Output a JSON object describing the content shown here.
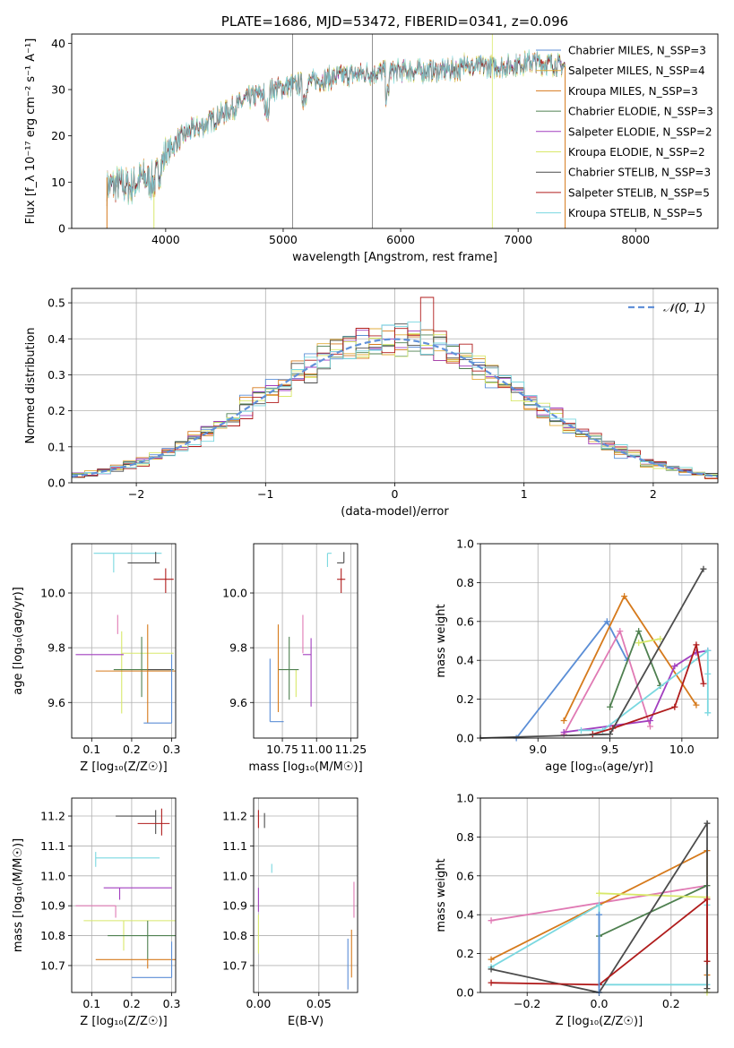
{
  "chart_data": [
    {
      "id": "spectrum",
      "type": "line",
      "title": "PLATE=1686, MJD=53472, FIBERID=0341, z=0.096",
      "xlabel": "wavelength [Angstrom, rest frame]",
      "ylabel": "Flux [f_λ 10⁻¹⁷ erg cm⁻² s⁻¹ A⁻¹]",
      "xlim": [
        3200,
        8700
      ],
      "ylim": [
        0,
        42
      ],
      "xticks": [
        4000,
        5000,
        6000,
        7000,
        8000
      ],
      "yticks": [
        0,
        10,
        20,
        30,
        40
      ],
      "grid": false,
      "legend_position": "top-right",
      "series": [
        {
          "name": "Chabrier MILES, N_SSP=3",
          "color": "#5b8ed6"
        },
        {
          "name": "Salpeter MILES, N_SSP=4",
          "color": "#e0ac3c"
        },
        {
          "name": "Kroupa MILES, N_SSP=3",
          "color": "#d67a1c"
        },
        {
          "name": "Chabrier ELODIE, N_SSP=3",
          "color": "#4f8050"
        },
        {
          "name": "Salpeter ELODIE, N_SSP=2",
          "color": "#a23fbf"
        },
        {
          "name": "Kroupa ELODIE, N_SSP=2",
          "color": "#d8e86a"
        },
        {
          "name": "Chabrier STELIB, N_SSP=3",
          "color": "#4c4c4c"
        },
        {
          "name": "Salpeter STELIB, N_SSP=5",
          "color": "#b01c1c"
        },
        {
          "name": "Kroupa STELIB, N_SSP=5",
          "color": "#7ad8e0"
        }
      ],
      "continuum": {
        "x": [
          3500,
          3600,
          3700,
          3800,
          3900,
          4000,
          4100,
          4200,
          4300,
          4500,
          4700,
          4900,
          5100,
          5300,
          5500,
          5700,
          5900,
          6100,
          6300,
          6500,
          6700,
          6900,
          7100,
          7300,
          7400
        ],
        "y": [
          9,
          9.5,
          9,
          11,
          10,
          16,
          19,
          21,
          22,
          25,
          28,
          30,
          31,
          32,
          33,
          33.5,
          34,
          34,
          34,
          34.5,
          35,
          35,
          36,
          35.5,
          35
        ]
      },
      "edge_drops": [
        3500,
        7400
      ],
      "spikes": [
        5080,
        5760,
        6780
      ]
    },
    {
      "id": "residuals",
      "type": "line",
      "xlabel": "(data-model)/error",
      "ylabel": "Normed distribution",
      "xlim": [
        -2.5,
        2.5
      ],
      "ylim": [
        0,
        0.54
      ],
      "xticks": [
        -2,
        -1,
        0,
        1,
        2
      ],
      "yticks": [
        0,
        0.1,
        0.2,
        0.3,
        0.4,
        0.5
      ],
      "grid": true,
      "legend_position": "top-right",
      "reference": {
        "name": "𝒩(0, 1)",
        "mean": 0,
        "sigma": 1,
        "color": "#6190d8"
      }
    },
    {
      "id": "age-vs-Z",
      "type": "scatter",
      "xlabel": "Z [log₁₀(Z/Z☉)]",
      "ylabel": "age  [log₁₀(age/yr)]",
      "xlim": [
        0.05,
        0.31
      ],
      "ylim": [
        9.47,
        10.18
      ],
      "xticks": [
        0.1,
        0.2,
        0.3
      ],
      "yticks": [
        9.6,
        9.8,
        10.0
      ],
      "grid": true,
      "points": [
        {
          "color": "#7ad8e0",
          "x": 0.155,
          "y": 10.145,
          "xerr": [
            0.05,
            0.12
          ],
          "yerr": [
            0.07,
            0.0
          ]
        },
        {
          "color": "#4c4c4c",
          "x": 0.26,
          "y": 10.11,
          "xerr": [
            0.07,
            0.01
          ],
          "yerr": [
            0.0,
            0.04
          ]
        },
        {
          "color": "#b01c1c",
          "x": 0.285,
          "y": 10.05,
          "xerr": [
            0.03,
            0.02
          ],
          "yerr": [
            0.05,
            0.04
          ]
        },
        {
          "color": "#e07ab4",
          "x": 0.165,
          "y": 9.85,
          "xerr": [
            0.0,
            0.0
          ],
          "yerr": [
            0.0,
            0.07
          ]
        },
        {
          "color": "#d8e86a",
          "x": 0.175,
          "y": 9.78,
          "xerr": [
            0.0,
            0.13
          ],
          "yerr": [
            0.22,
            0.08
          ]
        },
        {
          "color": "#a23fbf",
          "x": 0.16,
          "y": 9.775,
          "xerr": [
            0.1,
            0.02
          ],
          "yerr": [
            0.0,
            0.0
          ]
        },
        {
          "color": "#4f8050",
          "x": 0.225,
          "y": 9.72,
          "xerr": [
            0.07,
            0.08
          ],
          "yerr": [
            0.1,
            0.12
          ]
        },
        {
          "color": "#d67a1c",
          "x": 0.24,
          "y": 9.715,
          "xerr": [
            0.13,
            0.07
          ],
          "yerr": [
            0.19,
            0.17
          ]
        },
        {
          "color": "#4c4c4c",
          "x": 0.3,
          "y": 9.72,
          "xerr": [
            0.06,
            0.0
          ],
          "yerr": [
            0.0,
            0.0
          ]
        },
        {
          "color": "#5b8ed6",
          "x": 0.3,
          "y": 9.525,
          "xerr": [
            0.07,
            0.0
          ],
          "yerr": [
            0.0,
            0.25
          ]
        }
      ]
    },
    {
      "id": "age-vs-mass",
      "type": "scatter",
      "xlabel": "mass [log₁₀(M/M☉)]",
      "ylabel": "",
      "xlim": [
        10.54,
        11.3
      ],
      "ylim": [
        9.47,
        10.18
      ],
      "xticks": [
        10.75,
        11.0,
        11.25
      ],
      "yticks": [
        9.6,
        9.8,
        10.0
      ],
      "grid": true,
      "points": [
        {
          "color": "#7ad8e0",
          "x": 11.08,
          "y": 10.145,
          "xerr": [
            0.0,
            0.03
          ],
          "yerr": [
            0.05,
            0.0
          ]
        },
        {
          "color": "#4c4c4c",
          "x": 11.2,
          "y": 10.11,
          "xerr": [
            0.05,
            0.0
          ],
          "yerr": [
            0.0,
            0.04
          ]
        },
        {
          "color": "#b01c1c",
          "x": 11.18,
          "y": 10.05,
          "xerr": [
            0.03,
            0.03
          ],
          "yerr": [
            0.05,
            0.04
          ]
        },
        {
          "color": "#e07ab4",
          "x": 10.9,
          "y": 9.78,
          "xerr": [
            0.0,
            0.0
          ],
          "yerr": [
            0.0,
            0.14
          ]
        },
        {
          "color": "#a23fbf",
          "x": 10.96,
          "y": 9.775,
          "xerr": [
            0.06,
            0.0
          ],
          "yerr": [
            0.19,
            0.06
          ]
        },
        {
          "color": "#d8e86a",
          "x": 10.85,
          "y": 9.72,
          "xerr": [
            0.0,
            0.0
          ],
          "yerr": [
            0.1,
            0.0
          ]
        },
        {
          "color": "#4f8050",
          "x": 10.8,
          "y": 9.72,
          "xerr": [
            0.08,
            0.07
          ],
          "yerr": [
            0.11,
            0.12
          ]
        },
        {
          "color": "#d67a1c",
          "x": 10.72,
          "y": 9.715,
          "xerr": [
            0.0,
            0.0
          ],
          "yerr": [
            0.15,
            0.17
          ]
        },
        {
          "color": "#5b8ed6",
          "x": 10.66,
          "y": 9.53,
          "xerr": [
            0.0,
            0.1
          ],
          "yerr": [
            0.0,
            0.23
          ]
        }
      ]
    },
    {
      "id": "weight-vs-age",
      "type": "line",
      "xlabel": "age  [log₁₀(age/yr)]",
      "ylabel": "mass weight",
      "xlim": [
        8.6,
        10.25
      ],
      "ylim": [
        0,
        1.0
      ],
      "xticks": [
        9.0,
        9.5,
        10.0
      ],
      "yticks": [
        0.0,
        0.2,
        0.4,
        0.6,
        0.8,
        1.0
      ],
      "grid": true,
      "series": [
        {
          "color": "#5b8ed6",
          "x": [
            8.85,
            9.48,
            9.62
          ],
          "y": [
            0.0,
            0.6,
            0.4
          ]
        },
        {
          "color": "#d67a1c",
          "x": [
            9.18,
            9.6,
            10.1
          ],
          "y": [
            0.09,
            0.73,
            0.17
          ]
        },
        {
          "color": "#e07ab4",
          "x": [
            9.18,
            9.57,
            9.78
          ],
          "y": [
            0.02,
            0.55,
            0.06
          ]
        },
        {
          "color": "#4f8050",
          "x": [
            9.5,
            9.7,
            9.85
          ],
          "y": [
            0.16,
            0.55,
            0.27
          ]
        },
        {
          "color": "#d8e86a",
          "x": [
            9.7,
            9.85
          ],
          "y": [
            0.49,
            0.51
          ]
        },
        {
          "color": "#a23fbf",
          "x": [
            9.18,
            9.78,
            9.95,
            10.1,
            10.18
          ],
          "y": [
            0.03,
            0.09,
            0.37,
            0.44,
            0.45
          ]
        },
        {
          "color": "#7ad8e0",
          "x": [
            9.3,
            9.45,
            10.18,
            10.18,
            10.18
          ],
          "y": [
            0.04,
            0.04,
            0.45,
            0.33,
            0.13
          ]
        },
        {
          "color": "#b01c1c",
          "x": [
            9.38,
            9.52,
            9.95,
            10.1,
            10.15
          ],
          "y": [
            0.02,
            0.05,
            0.16,
            0.48,
            0.28
          ]
        },
        {
          "color": "#4c4c4c",
          "x": [
            8.6,
            9.5,
            10.15
          ],
          "y": [
            0.0,
            0.02,
            0.87
          ]
        }
      ]
    },
    {
      "id": "mass-vs-Z",
      "type": "scatter",
      "xlabel": "Z [log₁₀(Z/Z☉)]",
      "ylabel": "mass [log₁₀(M/M☉)]",
      "xlim": [
        0.05,
        0.31
      ],
      "ylim": [
        10.61,
        11.26
      ],
      "xticks": [
        0.1,
        0.2,
        0.3
      ],
      "yticks": [
        10.7,
        10.8,
        10.9,
        11.0,
        11.1,
        11.2
      ],
      "grid": true,
      "points": [
        {
          "color": "#4c4c4c",
          "x": 0.26,
          "y": 11.2,
          "xerr": [
            0.1,
            0.0
          ],
          "yerr": [
            0.06,
            0.02
          ]
        },
        {
          "color": "#b01c1c",
          "x": 0.275,
          "y": 11.175,
          "xerr": [
            0.06,
            0.02
          ],
          "yerr": [
            0.04,
            0.05
          ]
        },
        {
          "color": "#7ad8e0",
          "x": 0.11,
          "y": 11.06,
          "xerr": [
            0.0,
            0.16
          ],
          "yerr": [
            0.03,
            0.02
          ]
        },
        {
          "color": "#a23fbf",
          "x": 0.17,
          "y": 10.96,
          "xerr": [
            0.04,
            0.13
          ],
          "yerr": [
            0.04,
            0.0
          ]
        },
        {
          "color": "#e07ab4",
          "x": 0.16,
          "y": 10.9,
          "xerr": [
            0.1,
            0.0
          ],
          "yerr": [
            0.04,
            0.0
          ]
        },
        {
          "color": "#d8e86a",
          "x": 0.18,
          "y": 10.85,
          "xerr": [
            0.1,
            0.13
          ],
          "yerr": [
            0.1,
            0.0
          ]
        },
        {
          "color": "#4f8050",
          "x": 0.24,
          "y": 10.8,
          "xerr": [
            0.1,
            0.07
          ],
          "yerr": [
            0.08,
            0.05
          ]
        },
        {
          "color": "#d67a1c",
          "x": 0.24,
          "y": 10.72,
          "xerr": [
            0.13,
            0.07
          ],
          "yerr": [
            0.03,
            0.0
          ]
        },
        {
          "color": "#5b8ed6",
          "x": 0.3,
          "y": 10.66,
          "xerr": [
            0.1,
            0.0
          ],
          "yerr": [
            0.0,
            0.12
          ]
        }
      ]
    },
    {
      "id": "mass-vs-ebv",
      "type": "scatter",
      "xlabel": "E(B-V)",
      "ylabel": "",
      "xlim": [
        -0.004,
        0.082
      ],
      "ylim": [
        10.61,
        11.26
      ],
      "xticks": [
        0.0,
        0.05
      ],
      "xtick_labels": [
        "0.00",
        "0.05"
      ],
      "yticks": [
        10.7,
        10.8,
        10.9,
        11.0,
        11.1,
        11.2
      ],
      "grid": true,
      "points": [
        {
          "color": "#b01c1c",
          "x": 0.0,
          "y": 11.19,
          "xerr": [
            0,
            0
          ],
          "yerr": [
            0.03,
            0.03
          ]
        },
        {
          "color": "#4c4c4c",
          "x": 0.005,
          "y": 11.16,
          "xerr": [
            0,
            0
          ],
          "yerr": [
            0.0,
            0.05
          ]
        },
        {
          "color": "#7ad8e0",
          "x": 0.011,
          "y": 11.04,
          "xerr": [
            0,
            0
          ],
          "yerr": [
            0.03,
            0.0
          ]
        },
        {
          "color": "#a23fbf",
          "x": 0.0,
          "y": 10.92,
          "xerr": [
            0,
            0
          ],
          "yerr": [
            0.04,
            0.04
          ]
        },
        {
          "color": "#d8e86a",
          "x": 0.0,
          "y": 10.8,
          "xerr": [
            0,
            0
          ],
          "yerr": [
            0.06,
            0.07
          ]
        },
        {
          "color": "#4f8050",
          "x": 0.0,
          "y": 10.76,
          "xerr": [
            0,
            0
          ],
          "yerr": [
            0.0,
            0.0
          ]
        },
        {
          "color": "#e07ab4",
          "x": 0.079,
          "y": 10.92,
          "xerr": [
            0,
            0
          ],
          "yerr": [
            0.06,
            0.06
          ]
        },
        {
          "color": "#d67a1c",
          "x": 0.077,
          "y": 10.74,
          "xerr": [
            0,
            0
          ],
          "yerr": [
            0.08,
            0.08
          ]
        },
        {
          "color": "#5b8ed6",
          "x": 0.074,
          "y": 10.7,
          "xerr": [
            0,
            0
          ],
          "yerr": [
            0.08,
            0.09
          ]
        }
      ]
    },
    {
      "id": "weight-vs-Z",
      "type": "line",
      "xlabel": "Z [log₁₀(Z/Z☉)]",
      "ylabel": "mass weight",
      "xlim": [
        -0.33,
        0.33
      ],
      "ylim": [
        0,
        1.0
      ],
      "xticks": [
        -0.2,
        0.0,
        0.2
      ],
      "yticks": [
        0.0,
        0.2,
        0.4,
        0.6,
        0.8,
        1.0
      ],
      "grid": true,
      "series": [
        {
          "color": "#e07ab4",
          "x": [
            -0.3,
            0.3
          ],
          "y": [
            0.37,
            0.55
          ]
        },
        {
          "color": "#d67a1c",
          "x": [
            -0.3,
            0.3,
            0.3
          ],
          "y": [
            0.17,
            0.73,
            0.09
          ]
        },
        {
          "color": "#4f8050",
          "x": [
            0.0,
            0.3,
            0.3
          ],
          "y": [
            0.29,
            0.55,
            0.16
          ]
        },
        {
          "color": "#d8e86a",
          "x": [
            0.0,
            0.3,
            0.3
          ],
          "y": [
            0.51,
            0.49,
            0.0
          ]
        },
        {
          "color": "#7ad8e0",
          "x": [
            -0.3,
            0.0,
            0.0,
            0.3,
            0.3
          ],
          "y": [
            0.13,
            0.45,
            0.04,
            0.04,
            0.45
          ]
        },
        {
          "color": "#4c4c4c",
          "x": [
            -0.3,
            0.0,
            0.3,
            0.3
          ],
          "y": [
            0.12,
            0.0,
            0.87,
            0.02
          ]
        },
        {
          "color": "#b01c1c",
          "x": [
            -0.3,
            0.0,
            0.3,
            0.3
          ],
          "y": [
            0.05,
            0.04,
            0.48,
            0.16
          ]
        },
        {
          "color": "#5b8ed6",
          "x": [
            0.0,
            0.0
          ],
          "y": [
            0.0,
            0.4
          ]
        }
      ]
    }
  ]
}
